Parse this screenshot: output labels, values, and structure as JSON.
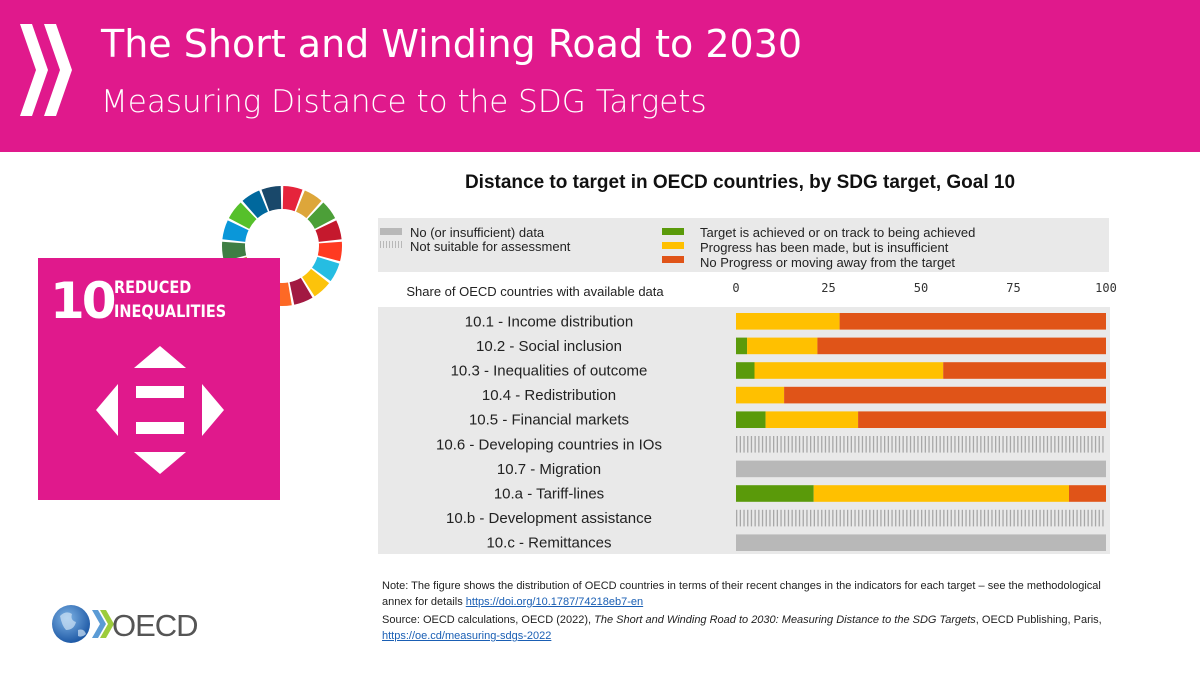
{
  "header": {
    "title": "The Short and Winding Road to 2030",
    "subtitle": "Measuring Distance to the SDG Targets"
  },
  "goal_tile": {
    "number": "10",
    "label_line1": "REDUCED",
    "label_line2": "INEQUALITIES"
  },
  "legend": {
    "no_data": "No (or insufficient) data",
    "not_suitable": "Not suitable for assessment",
    "on_track": "Target is achieved or on track to being achieved",
    "insufficient": "Progress has been made, but is insufficient",
    "no_progress": "No Progress or moving away from the target"
  },
  "colors": {
    "brand_magenta": "#e0198c",
    "on_track": "#5a9a0a",
    "insufficient": "#ffc000",
    "no_progress": "#e05418",
    "no_data": "#b8b8b8",
    "panel": "#e9e9e9"
  },
  "chart_data": {
    "type": "bar",
    "orientation": "horizontal",
    "stacked": true,
    "title": "Distance to target in OECD countries, by SDG target, Goal 10",
    "column_header": "Share of OECD countries with available data",
    "xlim": [
      0,
      100
    ],
    "xticks": [
      "0",
      "25",
      "50",
      "75",
      "100"
    ],
    "categories": [
      "10.1 - Income distribution",
      "10.2 - Social inclusion",
      "10.3 - Inequalities of outcome",
      "10.4 - Redistribution",
      "10.5 - Financial markets",
      "10.6 - Developing countries in IOs",
      "10.7 - Migration",
      "10.a - Tariff-lines",
      "10.b - Development assistance",
      "10.c - Remittances"
    ],
    "series": [
      {
        "name": "Target is achieved or on track to being achieved",
        "values": [
          0,
          3,
          5,
          0,
          8,
          0,
          0,
          21,
          0,
          0
        ]
      },
      {
        "name": "Progress has been made, but is insufficient",
        "values": [
          28,
          19,
          51,
          13,
          25,
          0,
          0,
          69,
          0,
          0
        ]
      },
      {
        "name": "No Progress or moving away from the target",
        "values": [
          72,
          78,
          44,
          87,
          67,
          0,
          0,
          10,
          0,
          0
        ]
      },
      {
        "name": "No (or insufficient) data",
        "values": [
          0,
          0,
          0,
          0,
          0,
          0,
          100,
          0,
          0,
          100
        ]
      },
      {
        "name": "Not suitable for assessment",
        "values": [
          0,
          0,
          0,
          0,
          0,
          100,
          0,
          0,
          100,
          0
        ]
      }
    ]
  },
  "note": {
    "text": "Note:  The figure shows the distribution of OECD countries in terms of their recent changes in the indicators for each target – see the methodological annex for details ",
    "link": "https://doi.org/10.1787/74218eb7-en"
  },
  "source": {
    "prefix": "Source: OECD calculations, OECD (2022), ",
    "publication": "The Short and Winding Road to 2030: Measuring Distance to the SDG Targets",
    "suffix": ", OECD Publishing, Paris, ",
    "link": "https://oe.cd/measuring-sdgs-2022"
  },
  "logo": {
    "text": "OECD"
  }
}
